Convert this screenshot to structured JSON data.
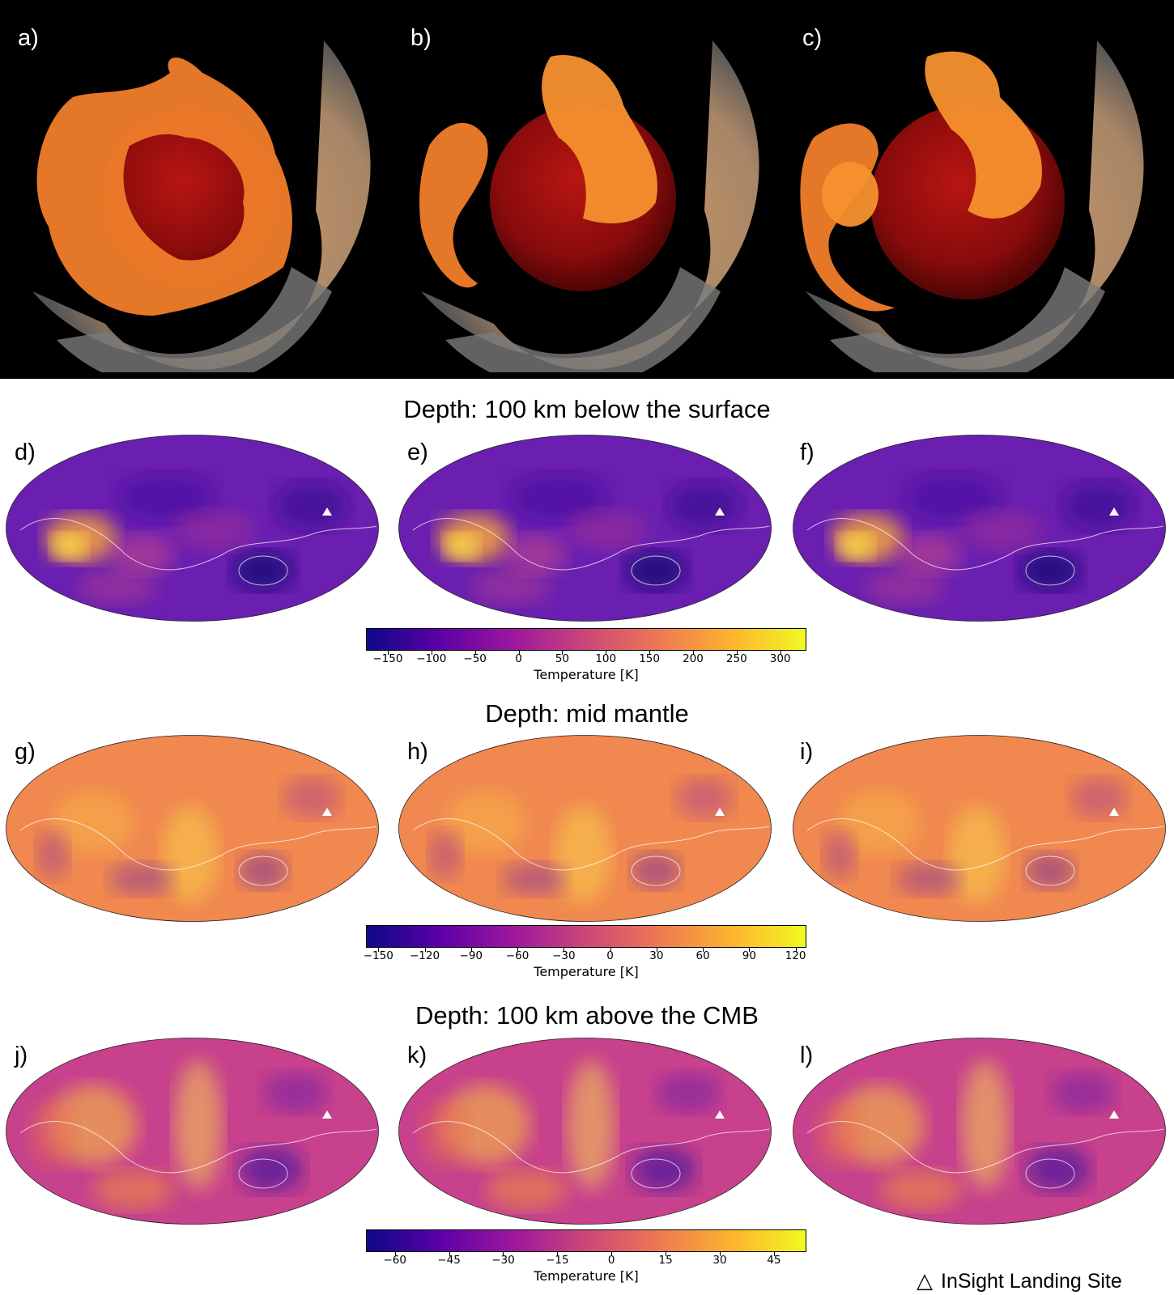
{
  "panels_3d": [
    "a)",
    "b)",
    "c)"
  ],
  "sections": [
    {
      "title": "Depth: 100 km below the surface",
      "panels": [
        "d)",
        "e)",
        "f)"
      ],
      "colorbar": {
        "label": "Temperature [K]",
        "ticks": [
          "−150",
          "−100",
          "−50",
          "0",
          "50",
          "100",
          "150",
          "200",
          "250",
          "300"
        ],
        "range": [
          -175,
          330
        ],
        "tick_values": [
          -150,
          -100,
          -50,
          0,
          50,
          100,
          150,
          200,
          250,
          300
        ]
      }
    },
    {
      "title": "Depth: mid mantle",
      "panels": [
        "g)",
        "h)",
        "i)"
      ],
      "colorbar": {
        "label": "Temperature [K]",
        "ticks": [
          "−150",
          "−120",
          "−90",
          "−60",
          "−30",
          "0",
          "30",
          "60",
          "90",
          "120"
        ],
        "range": [
          -158,
          127
        ],
        "tick_values": [
          -150,
          -120,
          -90,
          -60,
          -30,
          0,
          30,
          60,
          90,
          120
        ]
      }
    },
    {
      "title": "Depth: 100 km above the CMB",
      "panels": [
        "j)",
        "k)",
        "l)"
      ],
      "colorbar": {
        "label": "Temperature [K]",
        "ticks": [
          "−60",
          "−45",
          "−30",
          "−15",
          "0",
          "15",
          "30",
          "45"
        ],
        "range": [
          -68,
          54
        ],
        "tick_values": [
          -60,
          -45,
          -30,
          -15,
          0,
          15,
          30,
          45
        ]
      }
    }
  ],
  "legend": {
    "symbol": "△",
    "label": "InSight Landing Site"
  },
  "colors": {
    "colormap": [
      "#0d0887",
      "#5c01a6",
      "#9c179e",
      "#cc4778",
      "#ed7953",
      "#fdb42f",
      "#f0f921"
    ]
  }
}
